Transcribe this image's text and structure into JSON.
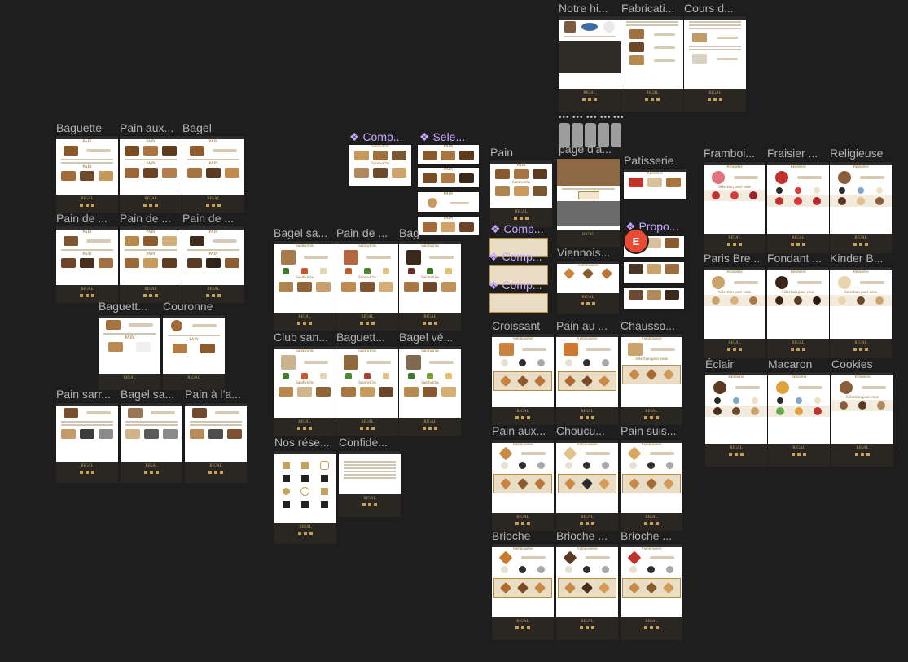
{
  "labels": {
    "baguette": "Baguette",
    "pain_aux_1": "Pain aux...",
    "bagel": "Bagel",
    "pain_de_1": "Pain de ...",
    "pain_de_2": "Pain de ...",
    "pain_de_3": "Pain de ...",
    "baguette_2": "Baguett...",
    "couronne": "Couronne",
    "pain_sarr": "Pain sarr...",
    "bagel_sa_1": "Bagel sa...",
    "pain_a_la": "Pain à l'a...",
    "comp_1": "❖ Comp...",
    "sele": "❖ Sele...",
    "bagel_sa_2": "Bagel sa...",
    "pain_de_4": "Pain de ...",
    "bag": "Bag",
    "club_san": "Club san...",
    "baguett_3": "Baguett...",
    "bagel_ve": "Bagel vé...",
    "nos_rese": "Nos rése...",
    "confide": "Confide...",
    "notre_hi": "Notre hi...",
    "fabricati": "Fabricati...",
    "cours_d": "Cours d...",
    "pain": "Pain",
    "page_d_a": "page d'a...",
    "patisserie": "Patisserie",
    "comp_2": "❖ Comp...",
    "comp_3": "❖ Comp...",
    "comp_4": "❖ Comp...",
    "viennois": "Viennois...",
    "propo": "❖ Propo...",
    "croissant": "Croissant",
    "pain_au": "Pain au ...",
    "chausso": "Chausso...",
    "pain_aux_2": "Pain aux...",
    "choucu": "Choucu...",
    "pain_suis": "Pain suis...",
    "brioche": "Brioche",
    "brioche_2": "Brioche ...",
    "brioche_3": "Brioche ...",
    "framboi": "Framboi...",
    "fraisier": "Fraisier ...",
    "religieuse": "Religieuse",
    "paris_bre": "Paris Bre...",
    "fondant": "Fondant ...",
    "kinder_b": "Kinder B...",
    "eclair": "Éclair",
    "macaron": "Macaron",
    "cookies": "Cookies"
  },
  "frame_text": {
    "brand": "RIGAL",
    "pain": "PAIN",
    "sandwichs": "Sandwichs",
    "patisserie": "Pâtisserie",
    "viennoiserie": "Viennoiserie",
    "sel_pour_vous": "Sélection pour vous"
  },
  "avatar": {
    "initial": "E",
    "color": "#e84a32"
  },
  "colors": {
    "canvas": "#1e1e1e",
    "footer": "#2a2723",
    "gold": "#c6a15b",
    "component": "#c9a9ff"
  }
}
